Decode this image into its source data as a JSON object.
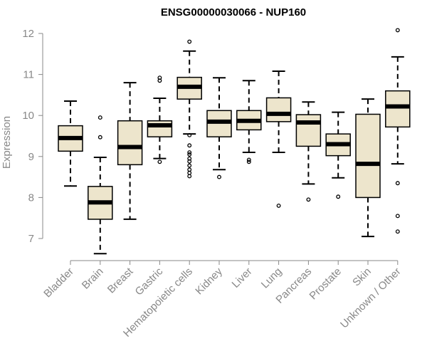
{
  "chart_data": {
    "type": "boxplot",
    "title": "ENSG00000030066 - NUP160",
    "xlabel": "",
    "ylabel": "Expression",
    "ylim": [
      6.5,
      12.2
    ],
    "yticks": [
      7,
      8,
      9,
      10,
      11,
      12
    ],
    "grid": false,
    "legend": "none",
    "colors": {
      "box_fill": "#ede5cc",
      "box_stroke": "#000000",
      "axis": "#888888",
      "text": "#888888"
    },
    "categories": [
      "Bladder",
      "Brain",
      "Breast",
      "Gastric",
      "Hematopoietic cells",
      "Kidney",
      "Liver",
      "Lung",
      "Pancreas",
      "Prostate",
      "Skin",
      "Unknown / Other"
    ],
    "boxes": [
      {
        "category": "Bladder",
        "whisker_low": 8.28,
        "q1": 9.13,
        "median": 9.45,
        "q3": 9.75,
        "whisker_high": 10.35,
        "outliers": []
      },
      {
        "category": "Brain",
        "whisker_low": 6.63,
        "q1": 7.47,
        "median": 7.88,
        "q3": 8.27,
        "whisker_high": 8.98,
        "outliers": [
          9.47,
          9.95
        ]
      },
      {
        "category": "Breast",
        "whisker_low": 7.47,
        "q1": 8.8,
        "median": 9.23,
        "q3": 9.87,
        "whisker_high": 10.8,
        "outliers": []
      },
      {
        "category": "Gastric",
        "whisker_low": 8.95,
        "q1": 9.48,
        "median": 9.76,
        "q3": 9.87,
        "whisker_high": 10.42,
        "outliers": [
          8.87,
          10.85,
          10.92
        ]
      },
      {
        "category": "Hematopoietic cells",
        "whisker_low": 9.55,
        "q1": 10.4,
        "median": 10.7,
        "q3": 10.93,
        "whisker_high": 11.57,
        "outliers": [
          11.8,
          9.52,
          9.27,
          9.1,
          9.05,
          8.95,
          8.88,
          8.78,
          8.68,
          8.6,
          8.52
        ]
      },
      {
        "category": "Kidney",
        "whisker_low": 8.68,
        "q1": 9.48,
        "median": 9.85,
        "q3": 10.12,
        "whisker_high": 10.92,
        "outliers": [
          8.5
        ]
      },
      {
        "category": "Liver",
        "whisker_low": 9.1,
        "q1": 9.65,
        "median": 9.87,
        "q3": 10.12,
        "whisker_high": 10.85,
        "outliers": [
          8.87,
          8.92
        ]
      },
      {
        "category": "Lung",
        "whisker_low": 9.1,
        "q1": 9.85,
        "median": 10.04,
        "q3": 10.43,
        "whisker_high": 11.08,
        "outliers": [
          7.8
        ]
      },
      {
        "category": "Pancreas",
        "whisker_low": 8.33,
        "q1": 9.25,
        "median": 9.83,
        "q3": 10.02,
        "whisker_high": 10.33,
        "outliers": [
          7.95
        ]
      },
      {
        "category": "Prostate",
        "whisker_low": 8.48,
        "q1": 9.02,
        "median": 9.3,
        "q3": 9.55,
        "whisker_high": 10.08,
        "outliers": [
          8.02
        ]
      },
      {
        "category": "Skin",
        "whisker_low": 7.05,
        "q1": 8.0,
        "median": 8.82,
        "q3": 10.03,
        "whisker_high": 10.4,
        "outliers": []
      },
      {
        "category": "Unknown / Other",
        "whisker_low": 8.82,
        "q1": 9.72,
        "median": 10.22,
        "q3": 10.6,
        "whisker_high": 11.43,
        "outliers": [
          12.08,
          8.35,
          7.55,
          7.17
        ]
      }
    ]
  }
}
